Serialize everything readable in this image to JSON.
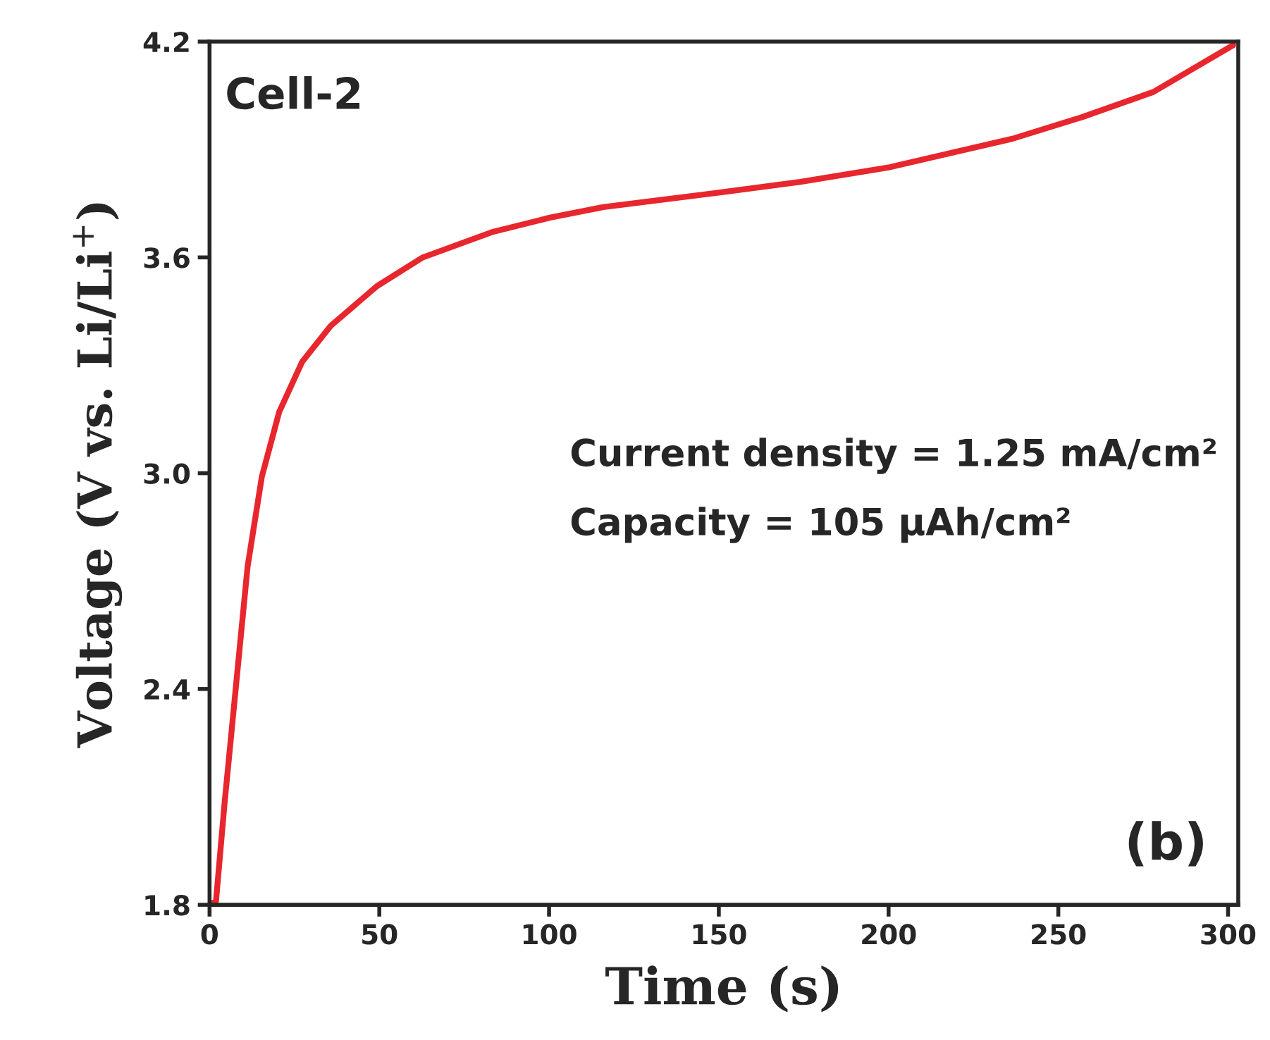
{
  "chart_data": {
    "type": "line",
    "xlabel": "Time (s)",
    "ylabel": "Voltage (V vs. Li/Li$^{+}$)",
    "xlim": [
      0,
      303
    ],
    "ylim": [
      1.8,
      4.2
    ],
    "xticks": [
      0,
      50,
      100,
      150,
      200,
      250,
      300
    ],
    "yticks": [
      1.8,
      2.4,
      {
        "value": 3,
        "label": "3.0"
      },
      3.6,
      4.2
    ],
    "grid": false,
    "legend": false,
    "marker": "none",
    "line_style": "solid",
    "series": [
      {
        "color": "#e8262e",
        "x": [
          0,
          1.9,
          4.4,
          7.8,
          11.2,
          15.4,
          20.5,
          27.3,
          35.7,
          49.3,
          62.8,
          83.1,
          100,
          116,
          150,
          174,
          200,
          236.5,
          257,
          278,
          301.5
        ],
        "values": [
          1.8,
          1.81,
          2.08,
          2.41,
          2.74,
          2.99,
          3.17,
          3.31,
          3.41,
          3.52,
          3.6,
          3.67,
          3.71,
          3.74,
          3.78,
          3.81,
          3.85,
          3.93,
          3.99,
          4.06,
          4.19
        ]
      }
    ],
    "annotations": [
      "Cell-2",
      "Current density = 1.25 mA/cm²",
      "Capacity = 105 μAh/cm²",
      "(b)"
    ]
  }
}
